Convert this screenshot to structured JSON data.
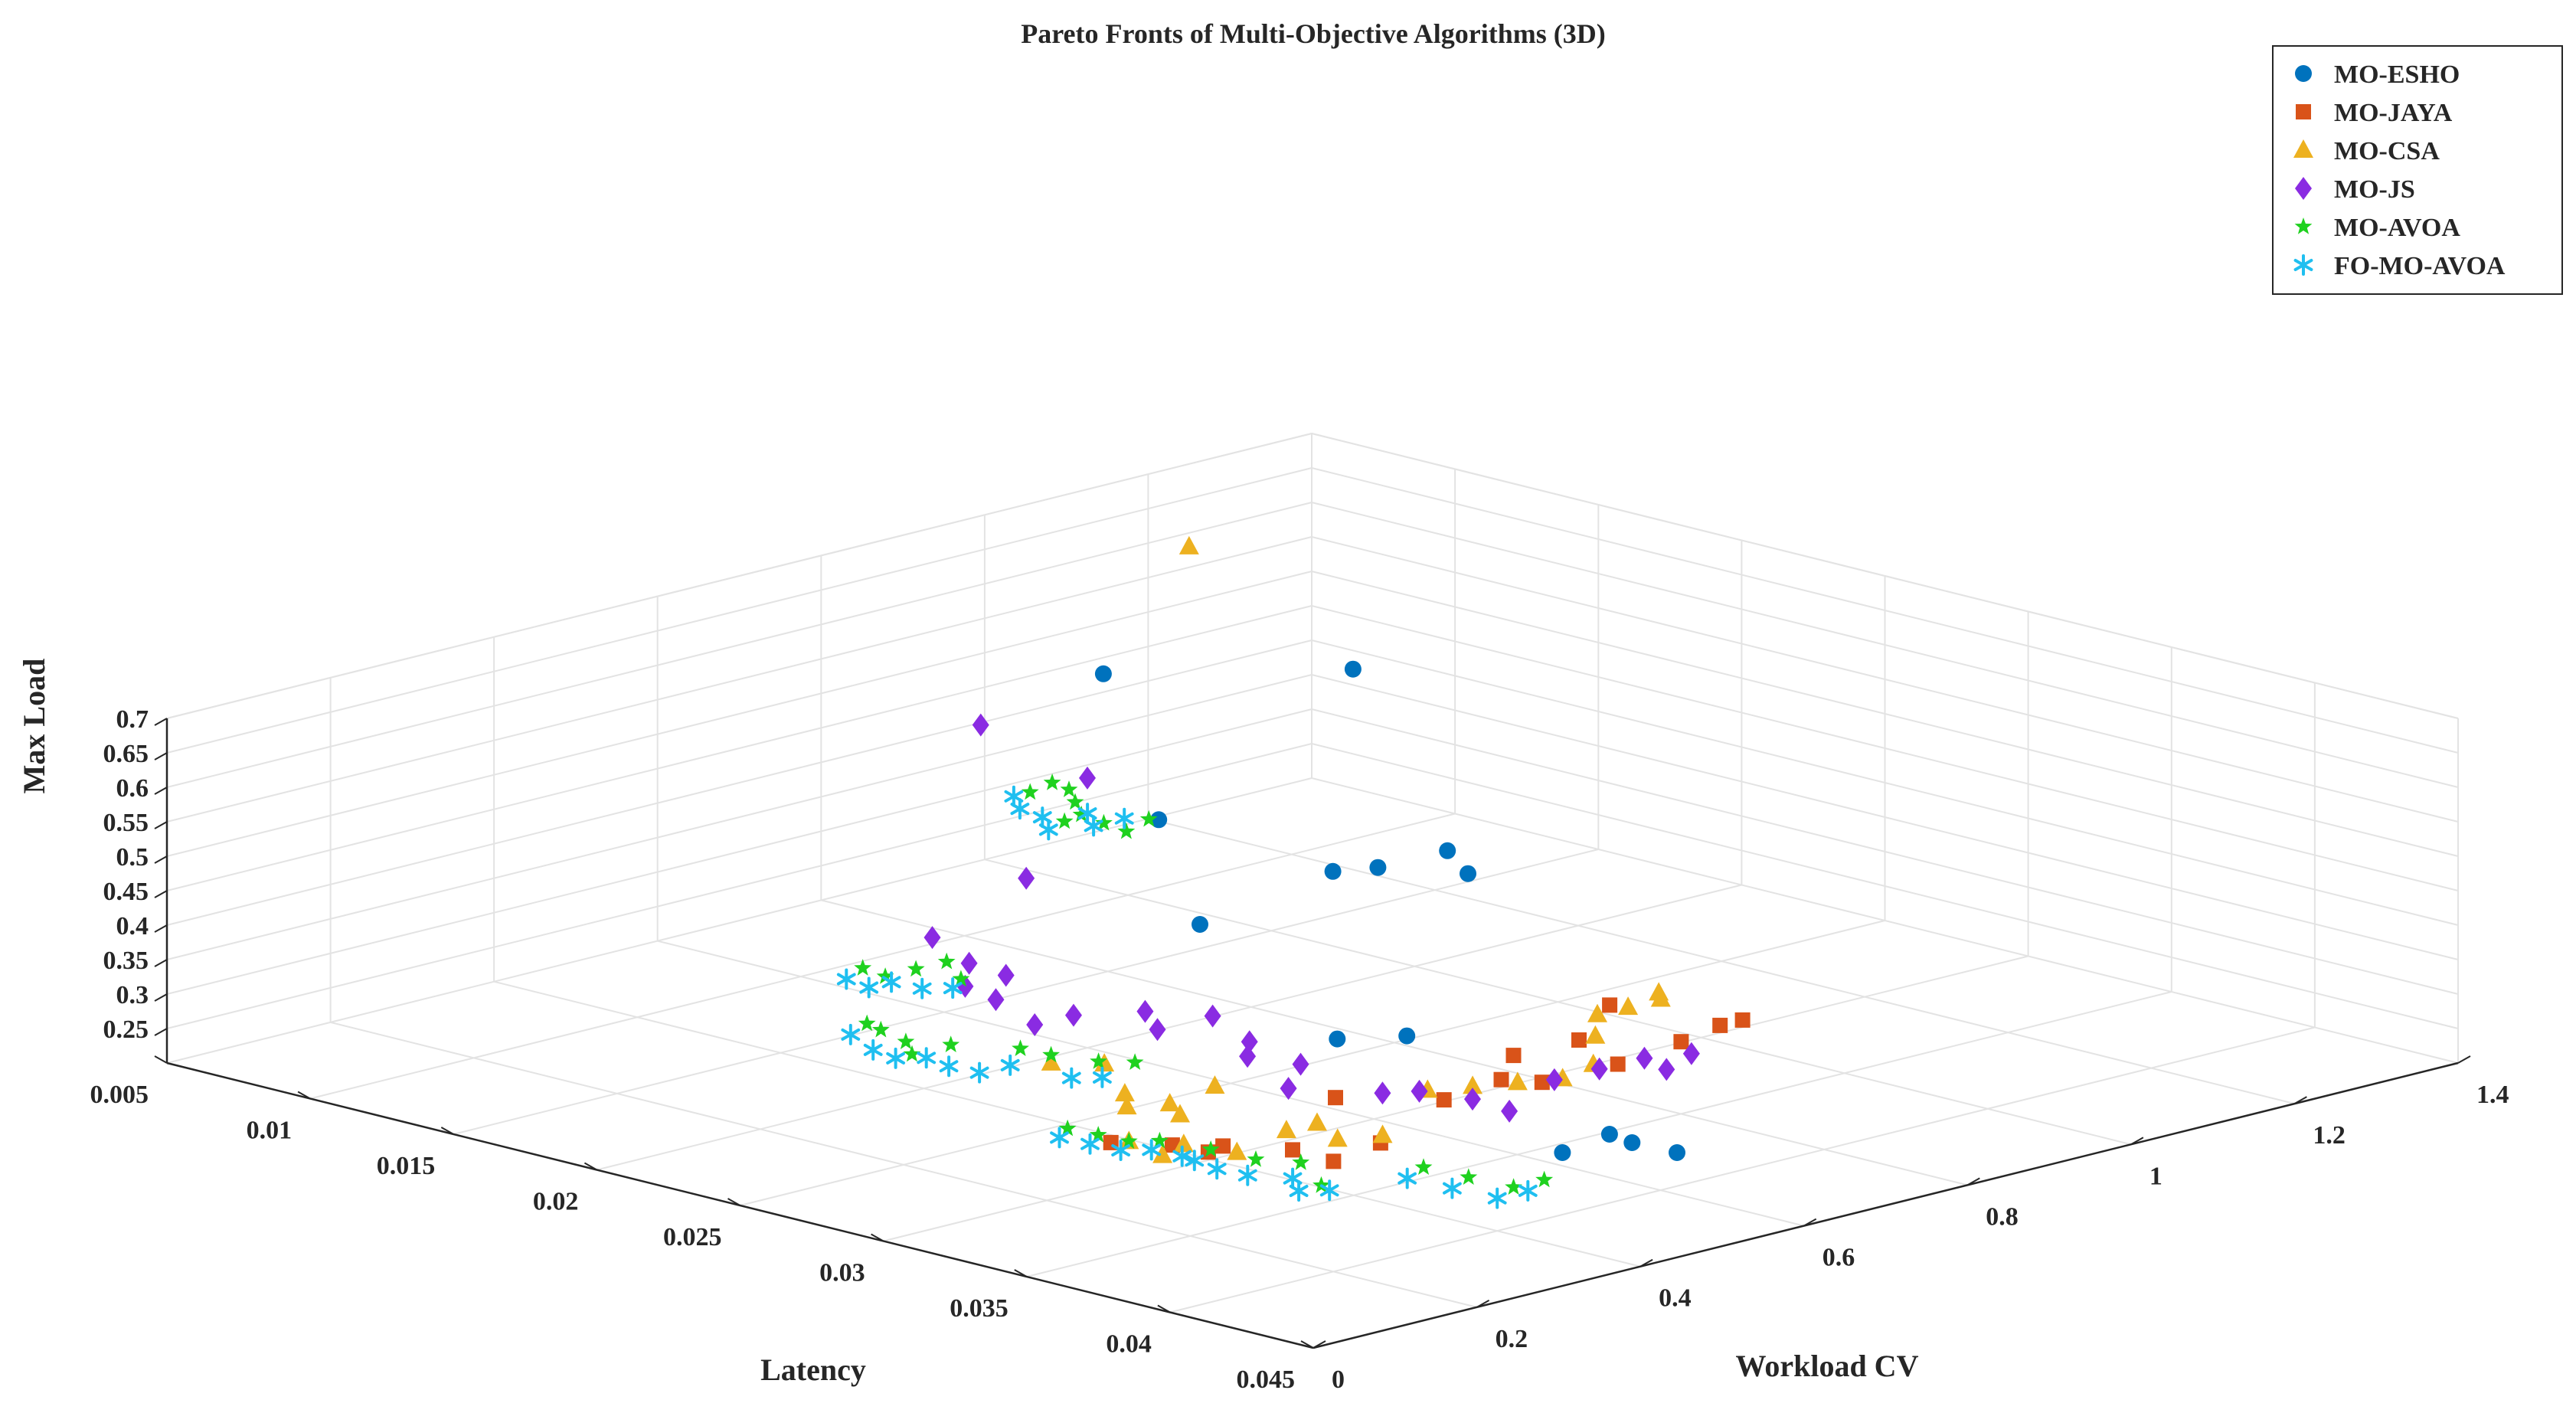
{
  "chart_data": {
    "type": "scatter",
    "dimensions": 3,
    "title": "Pareto Fronts of Multi-Objective Algorithms (3D)",
    "xlabel": "Latency",
    "ylabel": "Workload CV",
    "zlabel": "Max Load",
    "xlim": [
      0.005,
      0.045
    ],
    "ylim": [
      0,
      1.4
    ],
    "zlim": [
      0.2,
      0.7
    ],
    "x_ticks": [
      "0.005",
      "0.01",
      "0.015",
      "0.02",
      "0.025",
      "0.03",
      "0.035",
      "0.04",
      "0.045"
    ],
    "y_ticks": [
      "0",
      "0.2",
      "0.4",
      "0.6",
      "0.8",
      "1",
      "1.2",
      "1.4"
    ],
    "z_ticks": [
      "0.25",
      "0.3",
      "0.35",
      "0.4",
      "0.45",
      "0.5",
      "0.55",
      "0.6",
      "0.65",
      "0.7"
    ],
    "grid": true,
    "box": true,
    "legend_position": "top-right",
    "series": [
      {
        "name": "MO-ESHO",
        "color": "#0072BD",
        "marker": "circle",
        "points": [
          [
            0.01,
            0.97,
            0.53
          ],
          [
            0.0125,
            0.95,
            0.35
          ],
          [
            0.015,
            1.1,
            0.55
          ],
          [
            0.0225,
            0.65,
            0.39
          ],
          [
            0.024,
            0.76,
            0.45
          ],
          [
            0.025,
            0.78,
            0.46
          ],
          [
            0.026,
            0.83,
            0.48
          ],
          [
            0.027,
            0.82,
            0.46
          ],
          [
            0.031,
            0.52,
            0.35
          ],
          [
            0.032,
            0.57,
            0.35
          ],
          [
            0.04,
            0.48,
            0.29
          ],
          [
            0.0405,
            0.52,
            0.31
          ],
          [
            0.041,
            0.53,
            0.3
          ],
          [
            0.042,
            0.55,
            0.29
          ]
        ]
      },
      {
        "name": "MO-JAYA",
        "color": "#D95319",
        "marker": "square",
        "points": [
          [
            0.0348,
            0.11,
            0.36
          ],
          [
            0.0358,
            0.15,
            0.355
          ],
          [
            0.0362,
            0.18,
            0.34
          ],
          [
            0.037,
            0.17,
            0.36
          ],
          [
            0.0375,
            0.29,
            0.4
          ],
          [
            0.038,
            0.22,
            0.35
          ],
          [
            0.04,
            0.2,
            0.36
          ],
          [
            0.0405,
            0.24,
            0.38
          ],
          [
            0.041,
            0.3,
            0.43
          ],
          [
            0.041,
            0.42,
            0.42
          ],
          [
            0.042,
            0.35,
            0.49
          ],
          [
            0.043,
            0.3,
            0.48
          ],
          [
            0.044,
            0.36,
            0.53
          ],
          [
            0.0445,
            0.38,
            0.58
          ],
          [
            0.044,
            0.56,
            0.5
          ],
          [
            0.0435,
            0.55,
            0.49
          ],
          [
            0.043,
            0.52,
            0.47
          ],
          [
            0.0425,
            0.46,
            0.45
          ]
        ]
      },
      {
        "name": "MO-CSA",
        "color": "#EDB120",
        "marker": "triangle",
        "points": [
          [
            0.005,
            1.25,
            0.58
          ],
          [
            0.033,
            0.1,
            0.46
          ],
          [
            0.034,
            0.13,
            0.46
          ],
          [
            0.035,
            0.12,
            0.43
          ],
          [
            0.036,
            0.14,
            0.42
          ],
          [
            0.037,
            0.16,
            0.45
          ],
          [
            0.0345,
            0.14,
            0.4
          ],
          [
            0.0355,
            0.17,
            0.39
          ],
          [
            0.0362,
            0.15,
            0.36
          ],
          [
            0.0372,
            0.18,
            0.35
          ],
          [
            0.038,
            0.25,
            0.38
          ],
          [
            0.036,
            0.09,
            0.38
          ],
          [
            0.0366,
            0.11,
            0.36
          ],
          [
            0.0375,
            0.23,
            0.37
          ],
          [
            0.039,
            0.24,
            0.37
          ],
          [
            0.04,
            0.26,
            0.38
          ],
          [
            0.041,
            0.28,
            0.45
          ],
          [
            0.042,
            0.3,
            0.46
          ],
          [
            0.043,
            0.32,
            0.47
          ],
          [
            0.044,
            0.34,
            0.48
          ],
          [
            0.0445,
            0.36,
            0.5
          ],
          [
            0.044,
            0.38,
            0.53
          ],
          [
            0.0435,
            0.4,
            0.55
          ],
          [
            0.044,
            0.42,
            0.56
          ],
          [
            0.0445,
            0.44,
            0.58
          ],
          [
            0.044,
            0.46,
            0.56
          ]
        ]
      },
      {
        "name": "MO-JS",
        "color": "#8A2BE2",
        "marker": "diamond",
        "points": [
          [
            0.01,
            0.82,
            0.5
          ],
          [
            0.018,
            0.67,
            0.55
          ],
          [
            0.023,
            0.42,
            0.53
          ],
          [
            0.026,
            0.2,
            0.54
          ],
          [
            0.027,
            0.21,
            0.51
          ],
          [
            0.028,
            0.22,
            0.5
          ],
          [
            0.03,
            0.1,
            0.54
          ],
          [
            0.0305,
            0.12,
            0.52
          ],
          [
            0.031,
            0.15,
            0.48
          ],
          [
            0.0315,
            0.18,
            0.49
          ],
          [
            0.032,
            0.25,
            0.48
          ],
          [
            0.033,
            0.23,
            0.47
          ],
          [
            0.0335,
            0.28,
            0.48
          ],
          [
            0.0345,
            0.29,
            0.45
          ],
          [
            0.035,
            0.27,
            0.44
          ],
          [
            0.036,
            0.3,
            0.43
          ],
          [
            0.037,
            0.25,
            0.42
          ],
          [
            0.038,
            0.33,
            0.4
          ],
          [
            0.039,
            0.34,
            0.41
          ],
          [
            0.04,
            0.37,
            0.4
          ],
          [
            0.041,
            0.38,
            0.39
          ],
          [
            0.042,
            0.4,
            0.44
          ],
          [
            0.043,
            0.42,
            0.46
          ],
          [
            0.044,
            0.44,
            0.48
          ],
          [
            0.0442,
            0.46,
            0.46
          ],
          [
            0.0445,
            0.48,
            0.48
          ]
        ]
      },
      {
        "name": "MO-AVOA",
        "color": "#1FD11F",
        "marker": "star",
        "points": [
          [
            0.018,
            0.6,
            0.55
          ],
          [
            0.0182,
            0.62,
            0.56
          ],
          [
            0.0185,
            0.63,
            0.55
          ],
          [
            0.019,
            0.62,
            0.54
          ],
          [
            0.0192,
            0.6,
            0.52
          ],
          [
            0.0195,
            0.61,
            0.53
          ],
          [
            0.02,
            0.62,
            0.52
          ],
          [
            0.0205,
            0.63,
            0.51
          ],
          [
            0.021,
            0.64,
            0.53
          ],
          [
            0.025,
            0.15,
            0.5
          ],
          [
            0.0255,
            0.16,
            0.49
          ],
          [
            0.026,
            0.18,
            0.5
          ],
          [
            0.0265,
            0.2,
            0.51
          ],
          [
            0.027,
            0.2,
            0.49
          ],
          [
            0.028,
            0.05,
            0.48
          ],
          [
            0.0282,
            0.06,
            0.47
          ],
          [
            0.0285,
            0.08,
            0.45
          ],
          [
            0.029,
            0.07,
            0.44
          ],
          [
            0.0295,
            0.1,
            0.45
          ],
          [
            0.0305,
            0.15,
            0.44
          ],
          [
            0.031,
            0.17,
            0.43
          ],
          [
            0.0318,
            0.2,
            0.42
          ],
          [
            0.0325,
            0.22,
            0.42
          ],
          [
            0.035,
            0.05,
            0.4
          ],
          [
            0.0355,
            0.07,
            0.39
          ],
          [
            0.036,
            0.09,
            0.38
          ],
          [
            0.0365,
            0.11,
            0.38
          ],
          [
            0.038,
            0.12,
            0.38
          ],
          [
            0.039,
            0.14,
            0.37
          ],
          [
            0.04,
            0.16,
            0.37
          ],
          [
            0.041,
            0.15,
            0.35
          ],
          [
            0.042,
            0.24,
            0.36
          ],
          [
            0.043,
            0.26,
            0.35
          ],
          [
            0.044,
            0.28,
            0.34
          ],
          [
            0.0445,
            0.3,
            0.35
          ]
        ]
      },
      {
        "name": "FO-MO-AVOA",
        "color": "#1FBFF0",
        "marker": "asterisk",
        "points": [
          [
            0.018,
            0.58,
            0.55
          ],
          [
            0.0185,
            0.57,
            0.54
          ],
          [
            0.019,
            0.58,
            0.53
          ],
          [
            0.0195,
            0.57,
            0.52
          ],
          [
            0.02,
            0.6,
            0.54
          ],
          [
            0.0205,
            0.59,
            0.53
          ],
          [
            0.021,
            0.61,
            0.54
          ],
          [
            0.025,
            0.13,
            0.49
          ],
          [
            0.0255,
            0.14,
            0.48
          ],
          [
            0.026,
            0.15,
            0.49
          ],
          [
            0.0265,
            0.17,
            0.48
          ],
          [
            0.027,
            0.19,
            0.48
          ],
          [
            0.028,
            0.03,
            0.47
          ],
          [
            0.0285,
            0.04,
            0.45
          ],
          [
            0.029,
            0.05,
            0.44
          ],
          [
            0.0295,
            0.07,
            0.44
          ],
          [
            0.03,
            0.08,
            0.43
          ],
          [
            0.0305,
            0.1,
            0.42
          ],
          [
            0.031,
            0.12,
            0.43
          ],
          [
            0.032,
            0.16,
            0.41
          ],
          [
            0.0325,
            0.18,
            0.41
          ],
          [
            0.035,
            0.04,
            0.39
          ],
          [
            0.0355,
            0.06,
            0.38
          ],
          [
            0.036,
            0.08,
            0.37
          ],
          [
            0.0365,
            0.1,
            0.37
          ],
          [
            0.037,
            0.12,
            0.36
          ],
          [
            0.038,
            0.1,
            0.37
          ],
          [
            0.0385,
            0.11,
            0.36
          ],
          [
            0.039,
            0.13,
            0.35
          ],
          [
            0.04,
            0.15,
            0.35
          ],
          [
            0.0405,
            0.14,
            0.34
          ],
          [
            0.041,
            0.16,
            0.34
          ],
          [
            0.042,
            0.22,
            0.35
          ],
          [
            0.043,
            0.24,
            0.34
          ],
          [
            0.044,
            0.26,
            0.33
          ],
          [
            0.0445,
            0.28,
            0.34
          ]
        ]
      }
    ]
  }
}
